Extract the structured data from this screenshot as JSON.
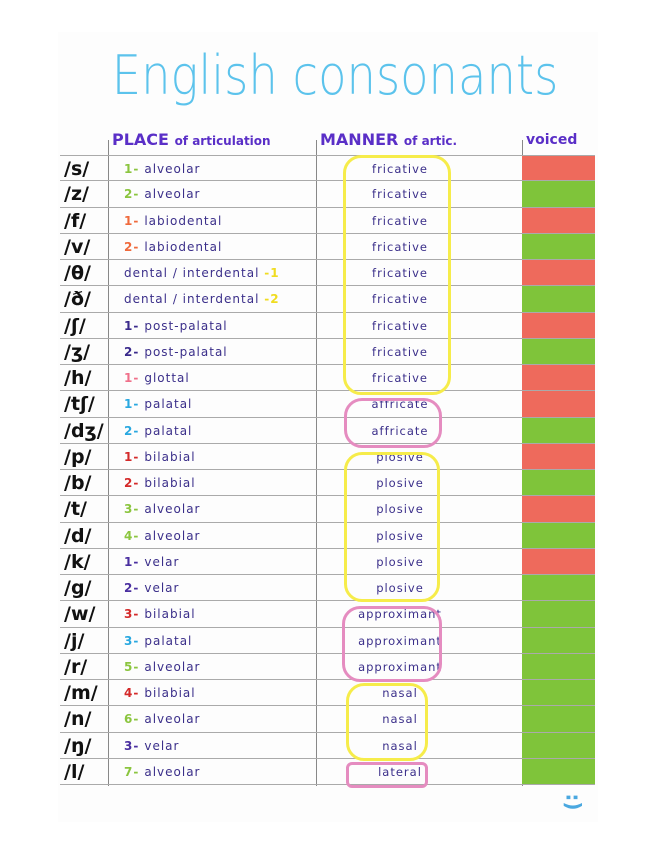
{
  "title": "English consonants",
  "headers": {
    "place": "PLACE",
    "place_sub": "of articulation",
    "manner": "MANNER",
    "manner_sub": "of artic.",
    "voiced": "voiced"
  },
  "colors": {
    "voiced": "#7fc43a",
    "voiceless": "#ee6a5c",
    "title": "#5cc3ec",
    "header": "#5a2fc7",
    "fricative_group": "#f6ec4a",
    "affricate_group": "#e58cc0",
    "plosive_group": "#f6ec4a",
    "approximant_group": "#e58cc0",
    "nasal_group": "#f6ec4a",
    "lateral_group": "#e58cc0"
  },
  "rows": [
    {
      "symbol": "/s/",
      "num": "1-",
      "num_color": "#8bc53f",
      "place": "alveolar",
      "manner": "fricative",
      "voiced": false
    },
    {
      "symbol": "/z/",
      "num": "2-",
      "num_color": "#8bc53f",
      "place": "alveolar",
      "manner": "fricative",
      "voiced": true
    },
    {
      "symbol": "/f/",
      "num": "1-",
      "num_color": "#f06a3c",
      "place": "labiodental",
      "manner": "fricative",
      "voiced": false
    },
    {
      "symbol": "/v/",
      "num": "2-",
      "num_color": "#f06a3c",
      "place": "labiodental",
      "manner": "fricative",
      "voiced": true
    },
    {
      "symbol": "/θ/",
      "num": "-1",
      "num_color": "#f0dc20",
      "place": "dental / interdental",
      "manner": "fricative",
      "voiced": false,
      "num_after": true
    },
    {
      "symbol": "/ð/",
      "num": "-2",
      "num_color": "#f0dc20",
      "place": "dental / interdental",
      "manner": "fricative",
      "voiced": true,
      "num_after": true
    },
    {
      "symbol": "/ʃ/",
      "num": "1-",
      "num_color": "#3a2a8c",
      "place": "post-palatal",
      "manner": "fricative",
      "voiced": false
    },
    {
      "symbol": "/ʒ/",
      "num": "2-",
      "num_color": "#3a2a8c",
      "place": "post-palatal",
      "manner": "fricative",
      "voiced": true
    },
    {
      "symbol": "/h/",
      "num": "1-",
      "num_color": "#f0708a",
      "place": "glottal",
      "manner": "fricative",
      "voiced": false
    },
    {
      "symbol": "/tʃ/",
      "num": "1-",
      "num_color": "#29a8e0",
      "place": "palatal",
      "manner": "affricate",
      "voiced": false
    },
    {
      "symbol": "/dʒ/",
      "num": "2-",
      "num_color": "#29a8e0",
      "place": "palatal",
      "manner": "affricate",
      "voiced": true
    },
    {
      "symbol": "/p/",
      "num": "1-",
      "num_color": "#d42a2a",
      "place": "bilabial",
      "manner": "plosive",
      "voiced": false
    },
    {
      "symbol": "/b/",
      "num": "2-",
      "num_color": "#d42a2a",
      "place": "bilabial",
      "manner": "plosive",
      "voiced": true
    },
    {
      "symbol": "/t/",
      "num": "3-",
      "num_color": "#8bc53f",
      "place": "alveolar",
      "manner": "plosive",
      "voiced": false
    },
    {
      "symbol": "/d/",
      "num": "4-",
      "num_color": "#8bc53f",
      "place": "alveolar",
      "manner": "plosive",
      "voiced": true
    },
    {
      "symbol": "/k/",
      "num": "1-",
      "num_color": "#4a2fa0",
      "place": "velar",
      "manner": "plosive",
      "voiced": false
    },
    {
      "symbol": "/g/",
      "num": "2-",
      "num_color": "#4a2fa0",
      "place": "velar",
      "manner": "plosive",
      "voiced": true
    },
    {
      "symbol": "/w/",
      "num": "3-",
      "num_color": "#d42a2a",
      "place": "bilabial",
      "manner": "approximant",
      "voiced": true
    },
    {
      "symbol": "/j/",
      "num": "3-",
      "num_color": "#29a8e0",
      "place": "palatal",
      "manner": "approximant",
      "voiced": true
    },
    {
      "symbol": "/r/",
      "num": "5-",
      "num_color": "#8bc53f",
      "place": "alveolar",
      "manner": "approximant",
      "voiced": true
    },
    {
      "symbol": "/m/",
      "num": "4-",
      "num_color": "#d42a2a",
      "place": "bilabial",
      "manner": "nasal",
      "voiced": true
    },
    {
      "symbol": "/n/",
      "num": "6-",
      "num_color": "#8bc53f",
      "place": "alveolar",
      "manner": "nasal",
      "voiced": true
    },
    {
      "symbol": "/ŋ/",
      "num": "3-",
      "num_color": "#4a2fa0",
      "place": "velar",
      "manner": "nasal",
      "voiced": true
    },
    {
      "symbol": "/l/",
      "num": "7-",
      "num_color": "#8bc53f",
      "place": "alveolar",
      "manner": "lateral",
      "voiced": true
    }
  ],
  "footer": {
    "smiley": ":)"
  }
}
